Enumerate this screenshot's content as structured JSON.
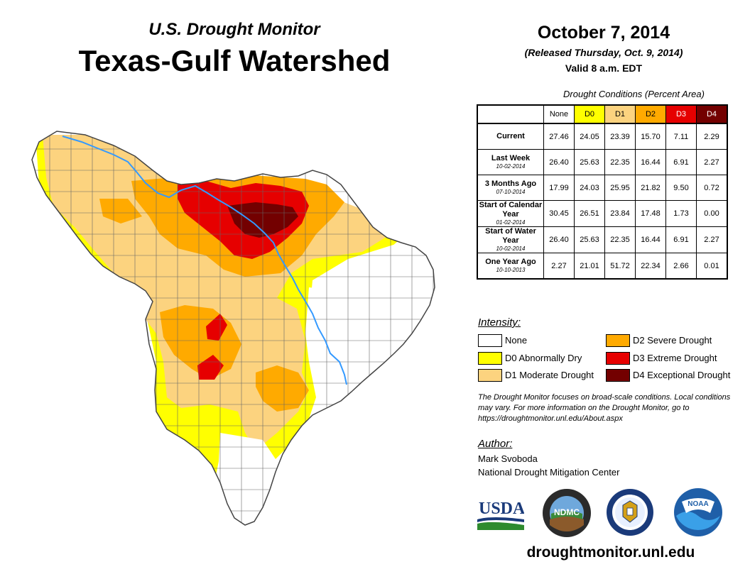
{
  "header": {
    "subtitle": "U.S. Drought Monitor",
    "title": "Texas-Gulf Watershed",
    "date": "October 7, 2014",
    "released": "(Released Thursday, Oct. 9, 2014)",
    "valid": "Valid 8 a.m. EDT"
  },
  "table": {
    "caption": "Drought Conditions (Percent Area)",
    "columns": [
      "None",
      "D0",
      "D1",
      "D2",
      "D3",
      "D4"
    ],
    "column_colors": [
      "#ffffff",
      "#ffff00",
      "#fcd37f",
      "#ffaa00",
      "#e60000",
      "#730000"
    ],
    "rows": [
      {
        "label": "Current",
        "date": "",
        "values": [
          "27.46",
          "24.05",
          "23.39",
          "15.70",
          "7.11",
          "2.29"
        ]
      },
      {
        "label": "Last Week",
        "date": "10-02-2014",
        "values": [
          "26.40",
          "25.63",
          "22.35",
          "16.44",
          "6.91",
          "2.27"
        ]
      },
      {
        "label": "3 Months Ago",
        "date": "07-10-2014",
        "values": [
          "17.99",
          "24.03",
          "25.95",
          "21.82",
          "9.50",
          "0.72"
        ]
      },
      {
        "label": "Start of Calendar Year",
        "date": "01-02-2014",
        "values": [
          "30.45",
          "26.51",
          "23.84",
          "17.48",
          "1.73",
          "0.00"
        ]
      },
      {
        "label": "Start of Water Year",
        "date": "10-02-2014",
        "values": [
          "26.40",
          "25.63",
          "22.35",
          "16.44",
          "6.91",
          "2.27"
        ]
      },
      {
        "label": "One Year Ago",
        "date": "10-10-2013",
        "values": [
          "2.27",
          "21.01",
          "51.72",
          "22.34",
          "2.66",
          "0.01"
        ]
      }
    ]
  },
  "legend": {
    "heading": "Intensity:",
    "items": [
      {
        "label": "None",
        "color": "#ffffff"
      },
      {
        "label": "D0 Abnormally Dry",
        "color": "#ffff00"
      },
      {
        "label": "D1 Moderate Drought",
        "color": "#fcd37f"
      },
      {
        "label": "D2 Severe Drought",
        "color": "#ffaa00"
      },
      {
        "label": "D3 Extreme Drought",
        "color": "#e60000"
      },
      {
        "label": "D4 Exceptional Drought",
        "color": "#730000"
      }
    ]
  },
  "note": "The Drought Monitor focuses on broad-scale conditions. Local conditions may vary. For more information on the Drought Monitor, go to https://droughtmonitor.unl.edu/About.aspx",
  "author": {
    "heading": "Author:",
    "name": "Mark Svoboda",
    "org": "National Drought Mitigation Center"
  },
  "logos": {
    "usda": "USDA",
    "ndmc": "NDMC",
    "noaa": "NOAA"
  },
  "footer_url": "droughtmonitor.unl.edu",
  "map_colors": {
    "river": "#3399ff",
    "border": "#444444",
    "county": "#666666"
  }
}
